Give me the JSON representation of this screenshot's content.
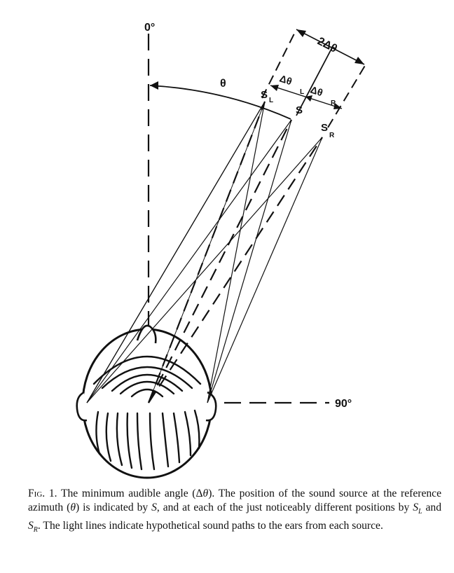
{
  "figure": {
    "labels": {
      "zero": "0°",
      "ninety": "90°",
      "theta": "θ",
      "two_delta_theta": "2Δθ",
      "delta_theta_l": "Δθ",
      "delta_theta_l_sub": "L",
      "delta_theta_r": "Δθ",
      "delta_theta_r_sub": "R",
      "s": "S",
      "s_l": "S",
      "s_l_sub": "L",
      "s_r": "S",
      "s_r_sub": "R"
    }
  },
  "caption": {
    "fig_label": "Fig. 1.",
    "text_1": " The minimum audible angle (Δ",
    "text_2": "). The position of the sound source at the reference azimuth (",
    "text_3": ") is indicated by ",
    "text_4": ", and at each of the just noticeably different positions by ",
    "text_5": " and ",
    "text_6": ". The light lines indicate hypothetical sound paths to the ears from each source.",
    "theta": "θ",
    "s": "S",
    "s_l": "S",
    "sub_l": "L",
    "s_r": "S",
    "sub_r": "R"
  }
}
